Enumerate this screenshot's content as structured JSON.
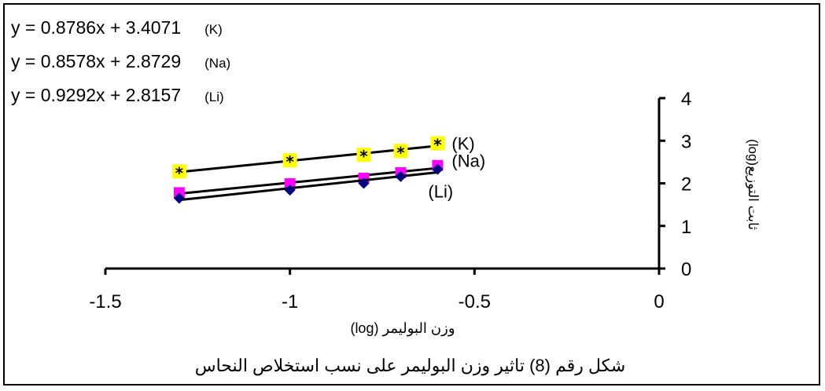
{
  "equations": [
    {
      "text": "y = 0.8786x + 3.4071",
      "tag": "(K)"
    },
    {
      "text": "y = 0.8578x + 2.8729",
      "tag": "(Na)"
    },
    {
      "text": "y = 0.9292x + 2.8157",
      "tag": "(Li)"
    }
  ],
  "caption": "شكل رقم (8) تاثير وزن البوليمر على نسب استخلاص النحاس",
  "chart_data": {
    "type": "scatter",
    "xlabel": "وزن البوليمر (log)",
    "ylabel": "ثابت التوزيع(log)",
    "xlim": [
      -1.5,
      0
    ],
    "ylim": [
      0,
      4
    ],
    "xticks": [
      "-1.5",
      "-1",
      "-0.5",
      "0"
    ],
    "yticks": [
      "0",
      "1",
      "2",
      "3",
      "4"
    ],
    "series": [
      {
        "name": "(K)",
        "color": "#ffff00",
        "marker": "square-star",
        "x": [
          -1.3,
          -1.0,
          -0.8,
          -0.7,
          -0.6
        ],
        "y": [
          2.28,
          2.54,
          2.67,
          2.76,
          2.94
        ],
        "trend": {
          "slope": 0.8786,
          "intercept": 3.4071
        }
      },
      {
        "name": "(Na)",
        "color": "#ff00ff",
        "marker": "square",
        "x": [
          -1.3,
          -1.0,
          -0.8,
          -0.7,
          -0.6
        ],
        "y": [
          1.78,
          1.99,
          2.12,
          2.25,
          2.42
        ],
        "trend": {
          "slope": 0.8578,
          "intercept": 2.8729
        }
      },
      {
        "name": "(Li)",
        "color": "#000080",
        "marker": "diamond",
        "x": [
          -1.3,
          -1.0,
          -0.8,
          -0.7,
          -0.6
        ],
        "y": [
          1.65,
          1.84,
          2.0,
          2.16,
          2.33
        ],
        "trend": {
          "slope": 0.9292,
          "intercept": 2.8157
        }
      }
    ]
  }
}
